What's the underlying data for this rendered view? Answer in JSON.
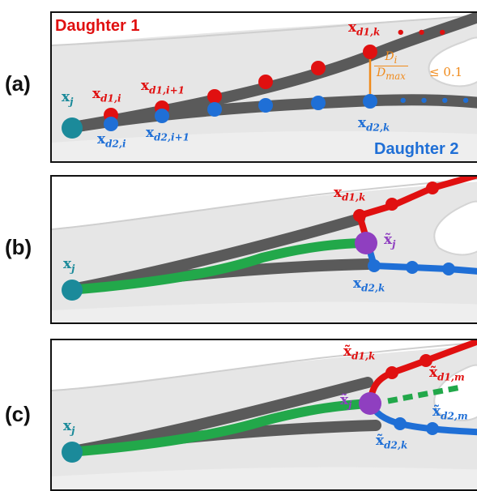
{
  "panels": [
    {
      "letter": "(a)",
      "daughter1_label": "Daughter 1",
      "daughter2_label": "Daughter 2",
      "labels": {
        "xj": "x",
        "xj_sub": "j",
        "xd1i": "x",
        "xd1i_sub": "d1,i",
        "xd1i1": "x",
        "xd1i1_sub": "d1,i+1",
        "xd1k": "x",
        "xd1k_sub": "d1,k",
        "xd2i": "x",
        "xd2i_sub": "d2,i",
        "xd2i1": "x",
        "xd2i1_sub": "d2,i+1",
        "xd2k": "x",
        "xd2k_sub": "d2,k"
      },
      "ratio": {
        "numerator": "D",
        "numerator_sub": "i",
        "denominator": "D",
        "denominator_sub": "max",
        "relation": "≤ 0.1"
      }
    },
    {
      "letter": "(b)",
      "labels": {
        "xj": "x",
        "xj_sub": "j",
        "xd1k": "x",
        "xd1k_sub": "d1,k",
        "xd2k": "x",
        "xd2k_sub": "d2,k",
        "xtj": "x̃",
        "xtj_sub": "j"
      }
    },
    {
      "letter": "(c)",
      "labels": {
        "xj": "x",
        "xj_sub": "j",
        "xtj": "x̃",
        "xtj_sub": "j",
        "xtd1k": "x̃",
        "xtd1k_sub": "d1,k",
        "xtd1m": "x̃",
        "xtd1m_sub": "d1,m",
        "xtd2m": "x̃",
        "xtd2m_sub": "d2,m",
        "xtd2k": "x̃",
        "xtd2k_sub": "d2,k"
      }
    }
  ],
  "colors": {
    "daughter1": "#e01010",
    "daughter2": "#1f6fd6",
    "root": "#1b8a9a",
    "bifurcation": "#8f3fc0",
    "centerline": "#5a5a5a",
    "smoothed": "#22a84a",
    "ratio": "#f08a1a",
    "vessel": "#e8e8e8"
  }
}
